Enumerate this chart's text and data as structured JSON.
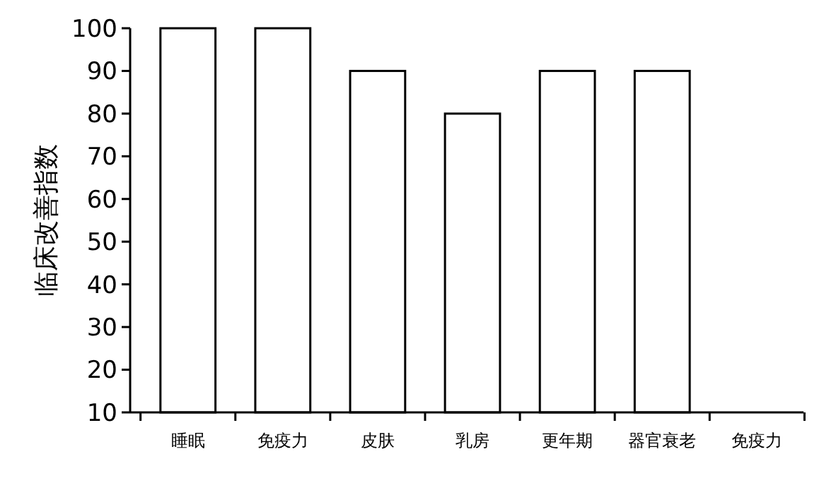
{
  "chart_data": {
    "type": "bar",
    "ylabel": "临床改善指数",
    "categories": [
      "睡眠",
      "免疫力",
      "皮肤",
      "乳房",
      "更年期",
      "器官衰老",
      "免疫力"
    ],
    "values": [
      100,
      100,
      90,
      80,
      90,
      90,
      null
    ],
    "color": "#ffffff",
    "ylim": [
      10,
      100
    ],
    "yticks": [
      10,
      20,
      30,
      40,
      50,
      60,
      70,
      80,
      90,
      100
    ],
    "grid": false
  }
}
